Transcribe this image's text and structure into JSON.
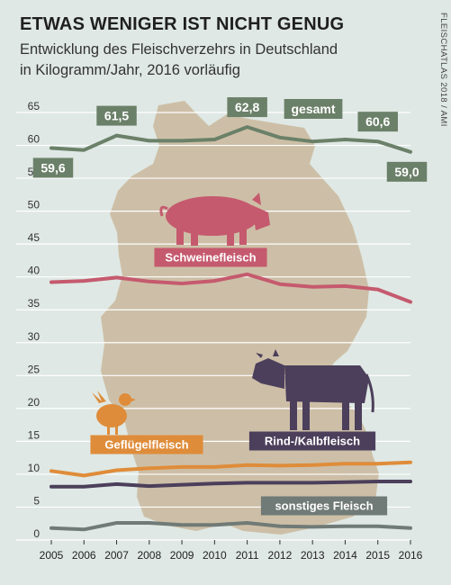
{
  "title": "ETWAS WENIGER IST NICHT GENUG",
  "subtitle_line1": "Entwicklung des Fleischverzehrs in Deutschland",
  "subtitle_line2": "in Kilogramm/Jahr, 2016 vorläufig",
  "source": "FLEISCHATLAS 2018 / AMI",
  "colors": {
    "background": "#dfe8e4",
    "map": "#cdbfa7",
    "grid": "#ffffff",
    "gesamt": "#6b8068",
    "schwein": "#c55a6e",
    "rind": "#4c3f5b",
    "gefluegel": "#df8c3a",
    "sonstiges": "#707a76"
  },
  "icons": [
    "pig-icon",
    "cow-icon",
    "chicken-icon",
    "germany-map-icon"
  ],
  "chart_data": {
    "type": "line",
    "x": [
      2005,
      2006,
      2007,
      2008,
      2009,
      2010,
      2011,
      2012,
      2013,
      2014,
      2015,
      2016
    ],
    "ylim": [
      0,
      65
    ],
    "yticks": [
      0,
      5,
      10,
      15,
      20,
      25,
      30,
      35,
      40,
      45,
      50,
      55,
      60,
      65
    ],
    "grid": true,
    "series": [
      {
        "name": "gesamt",
        "color": "#6b8068",
        "values": [
          59.6,
          59.3,
          61.5,
          60.7,
          60.7,
          60.9,
          62.8,
          61.2,
          60.6,
          60.9,
          60.6,
          59.0
        ]
      },
      {
        "name": "Schweinefleisch",
        "color": "#c55a6e",
        "values": [
          39.2,
          39.4,
          39.9,
          39.3,
          39.0,
          39.4,
          40.4,
          38.9,
          38.5,
          38.6,
          38.1,
          36.2
        ]
      },
      {
        "name": "Geflügelfleisch",
        "color": "#df8c3a",
        "values": [
          10.5,
          9.8,
          10.6,
          10.9,
          11.1,
          11.1,
          11.4,
          11.3,
          11.4,
          11.6,
          11.6,
          11.8
        ]
      },
      {
        "name": "Rind-/Kalbfleisch",
        "color": "#4c3f5b",
        "values": [
          8.1,
          8.1,
          8.5,
          8.2,
          8.4,
          8.6,
          8.7,
          8.7,
          8.7,
          8.8,
          8.9,
          8.9
        ]
      },
      {
        "name": "sonstiges Fleisch",
        "color": "#707a76",
        "values": [
          1.8,
          1.6,
          2.6,
          2.6,
          2.3,
          2.3,
          2.6,
          2.1,
          2.0,
          2.1,
          2.1,
          1.8
        ]
      }
    ],
    "value_labels": [
      {
        "year": 2005,
        "value": "59,6",
        "position": "below"
      },
      {
        "year": 2007,
        "value": "61,5",
        "position": "above"
      },
      {
        "year": 2011,
        "value": "62,8",
        "position": "above"
      },
      {
        "year": 2015,
        "value": "60,6",
        "position": "above"
      },
      {
        "year": 2016,
        "value": "59,0",
        "position": "below"
      }
    ],
    "series_labels": {
      "gesamt": "gesamt",
      "schwein": "Schweinefleisch",
      "rind": "Rind-/Kalbfleisch",
      "gefluegel": "Geflügelfleisch",
      "sonstiges": "sonstiges Fleisch"
    }
  }
}
